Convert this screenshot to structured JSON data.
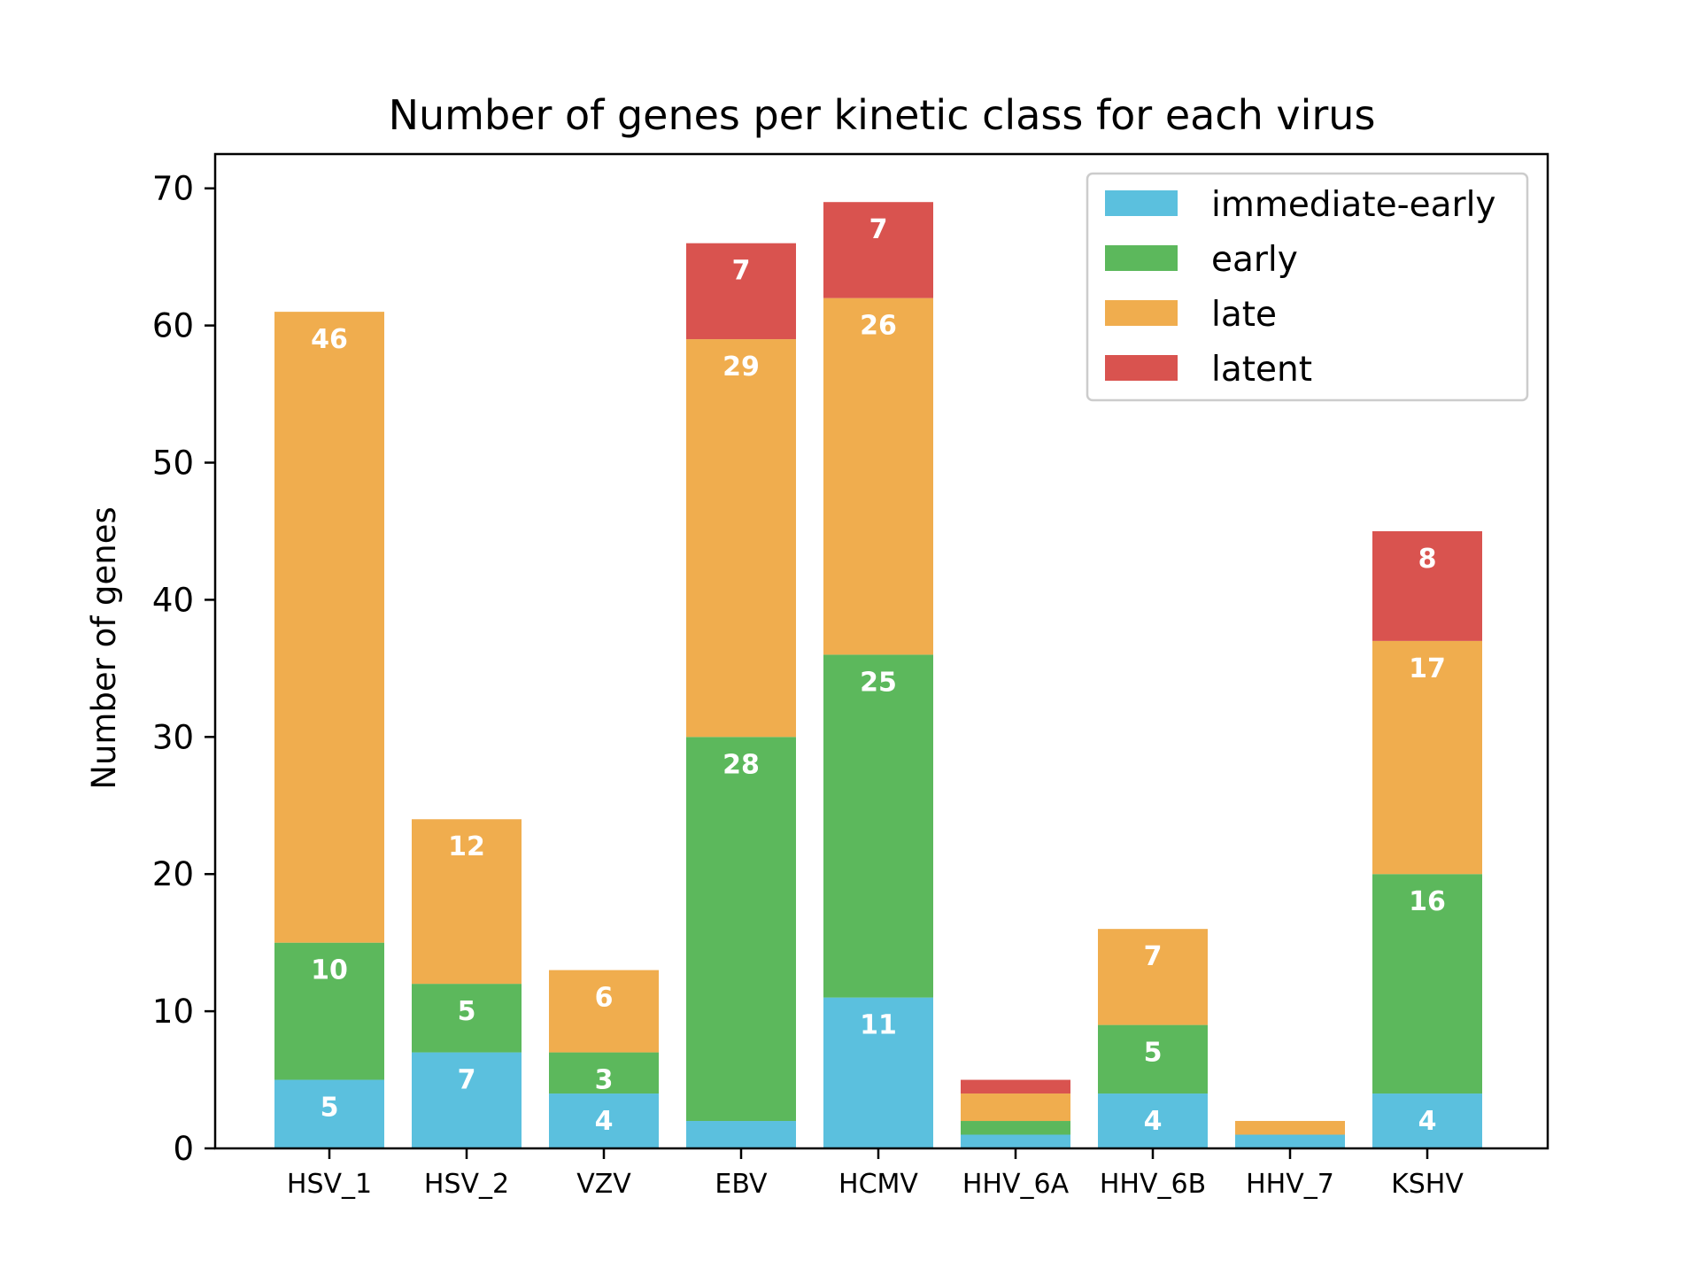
{
  "chart_data": {
    "type": "bar",
    "stacked": true,
    "title": "Number of genes per kinetic class for each virus",
    "xlabel": "",
    "ylabel": "Number of genes",
    "ylim": [
      0,
      72.5
    ],
    "yticks": [
      0,
      10,
      20,
      30,
      40,
      50,
      60,
      70
    ],
    "grid": false,
    "legend_position": "top-right",
    "categories": [
      "HSV_1",
      "HSV_2",
      "VZV",
      "EBV",
      "HCMV",
      "HHV_6A",
      "HHV_6B",
      "HHV_7",
      "KSHV"
    ],
    "series": [
      {
        "name": "immediate-early",
        "color": "#5bc0de",
        "values": [
          5,
          7,
          4,
          2,
          11,
          1,
          4,
          1,
          4
        ]
      },
      {
        "name": "early",
        "color": "#5cb85c",
        "values": [
          10,
          5,
          3,
          28,
          25,
          1,
          5,
          0,
          16
        ]
      },
      {
        "name": "late",
        "color": "#f0ad4e",
        "values": [
          46,
          12,
          6,
          29,
          26,
          2,
          7,
          1,
          17
        ]
      },
      {
        "name": "latent",
        "color": "#d9534f",
        "values": [
          0,
          0,
          0,
          7,
          7,
          1,
          0,
          0,
          8
        ]
      }
    ],
    "label_min_value": 3
  }
}
